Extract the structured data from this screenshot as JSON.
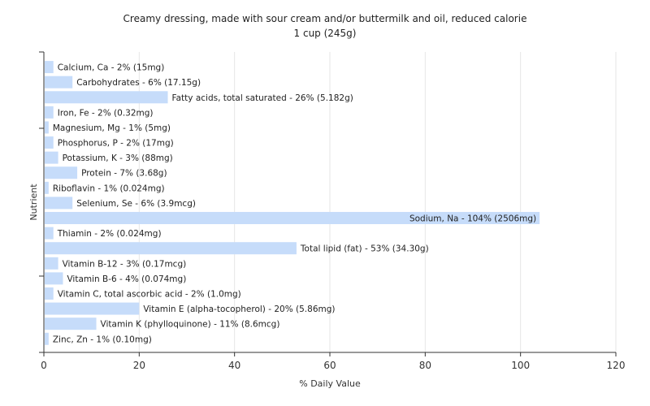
{
  "chart_data": {
    "type": "bar",
    "orientation": "horizontal",
    "title": "Creamy dressing, made with sour cream and/or buttermilk and oil, reduced calorie",
    "subtitle": "1 cup (245g)",
    "xlabel": "% Daily Value",
    "ylabel": "Nutrient",
    "xlim": [
      0,
      120
    ],
    "xticks": [
      "0",
      "20",
      "40",
      "60",
      "80",
      "100",
      "120"
    ],
    "grid": true,
    "bar_color": "#c6dcfa",
    "categories": [
      "Calcium, Ca",
      "Carbohydrates",
      "Fatty acids, total saturated",
      "Iron, Fe",
      "Magnesium, Mg",
      "Phosphorus, P",
      "Potassium, K",
      "Protein",
      "Riboflavin",
      "Selenium, Se",
      "Sodium, Na",
      "Thiamin",
      "Total lipid (fat)",
      "Vitamin B-12",
      "Vitamin B-6",
      "Vitamin C, total ascorbic acid",
      "Vitamin E (alpha-tocopherol)",
      "Vitamin K (phylloquinone)",
      "Zinc, Zn"
    ],
    "values": [
      2,
      6,
      26,
      2,
      1,
      2,
      3,
      7,
      1,
      6,
      104,
      2,
      53,
      3,
      4,
      2,
      20,
      11,
      1
    ],
    "labels": [
      "Calcium, Ca - 2% (15mg)",
      "Carbohydrates - 6% (17.15g)",
      "Fatty acids, total saturated - 26% (5.182g)",
      "Iron, Fe - 2% (0.32mg)",
      "Magnesium, Mg - 1% (5mg)",
      "Phosphorus, P - 2% (17mg)",
      "Potassium, K - 3% (88mg)",
      "Protein - 7% (3.68g)",
      "Riboflavin - 1% (0.024mg)",
      "Selenium, Se - 6% (3.9mcg)",
      "Sodium, Na - 104% (2506mg)",
      "Thiamin - 2% (0.024mg)",
      "Total lipid (fat) - 53% (34.30g)",
      "Vitamin B-12 - 3% (0.17mcg)",
      "Vitamin B-6 - 4% (0.074mg)",
      "Vitamin C, total ascorbic acid - 2% (1.0mg)",
      "Vitamin E (alpha-tocopherol) - 20% (5.86mg)",
      "Vitamin K (phylloquinone) - 11% (8.6mcg)",
      "Zinc, Zn - 1% (0.10mg)"
    ]
  }
}
